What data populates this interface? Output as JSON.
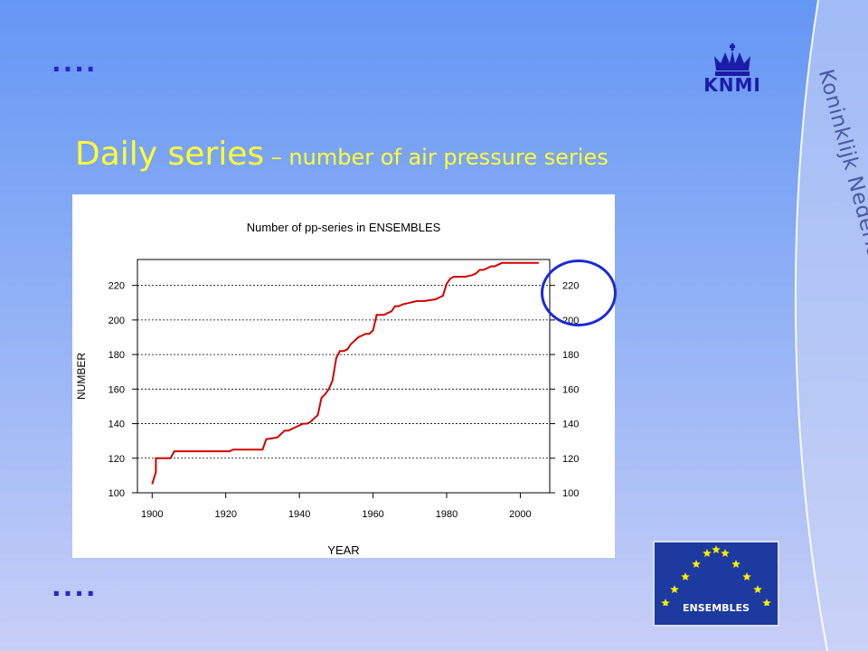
{
  "slide": {
    "title_main": "Daily series",
    "title_sub": " – number of air pressure series",
    "dots_top": "....",
    "dots_bottom": "....",
    "side_text": "Koninklijk Nederlands Meteorologisch Instituut",
    "logo_text": "KNMI",
    "ensembles_text": "ENSEMBLES"
  },
  "colors": {
    "title": "#ffff33",
    "dots": "#2626c8",
    "line": "#d40000",
    "circle": "#1a2ad8"
  },
  "chart_data": {
    "type": "line",
    "title": "Number of pp-series in ENSEMBLES",
    "xlabel": "YEAR",
    "ylabel": "NUMBER",
    "xlim": [
      1896,
      2008
    ],
    "ylim": [
      100,
      235
    ],
    "xticks": [
      1900,
      1920,
      1940,
      1960,
      1980,
      2000
    ],
    "yticks": [
      100,
      120,
      140,
      160,
      180,
      200,
      220
    ],
    "grid": "horizontal-dotted",
    "right_axis": true,
    "series": [
      {
        "x": [
          1900,
          1901,
          1901,
          1905,
          1906,
          1921,
          1922,
          1929,
          1930,
          1931,
          1934,
          1935,
          1936,
          1937,
          1938,
          1939,
          1940,
          1941,
          1942,
          1943,
          1944,
          1945,
          1946,
          1947,
          1948,
          1949,
          1950,
          1951,
          1952,
          1953,
          1954,
          1955,
          1956,
          1957,
          1958,
          1959,
          1960,
          1961,
          1962,
          1963,
          1964,
          1965,
          1966,
          1967,
          1968,
          1970,
          1972,
          1974,
          1977,
          1978,
          1979,
          1980,
          1981,
          1982,
          1983,
          1985,
          1987,
          1988,
          1989,
          1990,
          1991,
          1992,
          1993,
          1994,
          1995,
          2000,
          2005
        ],
        "y": [
          105,
          112,
          120,
          120,
          124,
          124,
          125,
          125,
          125,
          131,
          132,
          134,
          136,
          136,
          137,
          138,
          139,
          140,
          140,
          141,
          143,
          145,
          155,
          157,
          160,
          165,
          178,
          182,
          182,
          183,
          186,
          188,
          190,
          191,
          192,
          192,
          194,
          203,
          203,
          203,
          204,
          205,
          208,
          208,
          209,
          210,
          211,
          211,
          212,
          213,
          214,
          221,
          224,
          225,
          225,
          225,
          226,
          227,
          229,
          229,
          230,
          231,
          231,
          232,
          233,
          233,
          233
        ]
      }
    ]
  }
}
